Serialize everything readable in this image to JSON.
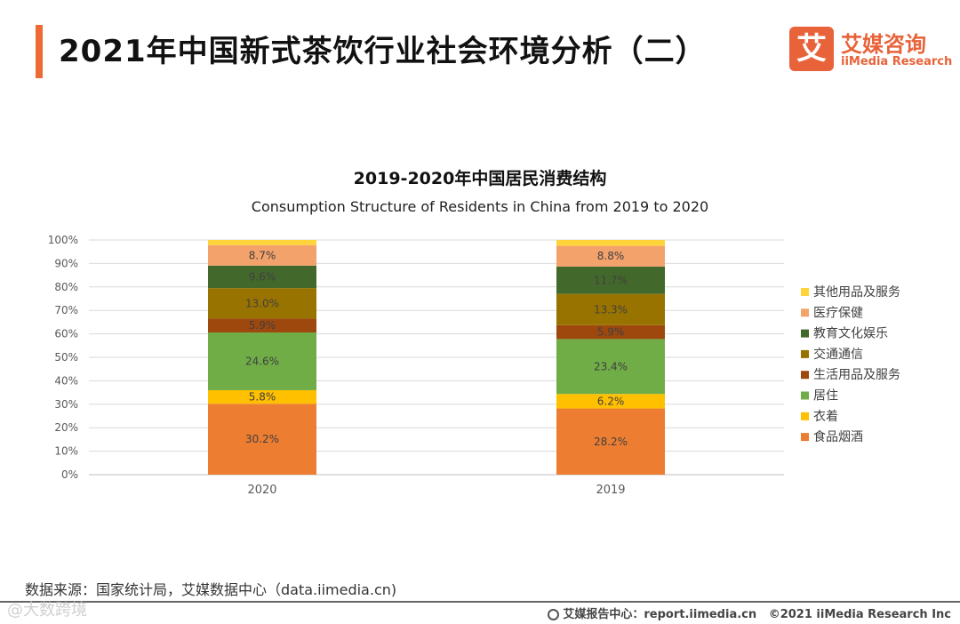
{
  "header": {
    "title": "2021年中国新式茶饮行业社会环境分析（二）",
    "logo_mark": "艾",
    "logo_cn": "艾媒咨询",
    "logo_en": "iiMedia Research"
  },
  "colors": {
    "accent": "#ee6a35",
    "food": "#ed7d31",
    "clothing": "#ffc000",
    "housing": "#70ad47",
    "daily": "#9e480e",
    "transport": "#997300",
    "education": "#43682b",
    "medical": "#f4a26b",
    "other": "#ffd43b"
  },
  "chart_data": {
    "type": "bar",
    "stacked": true,
    "percent": true,
    "title": "2019-2020年中国居民消费结构",
    "subtitle": "Consumption Structure of Residents in China from 2019 to 2020",
    "categories": [
      "2020",
      "2019"
    ],
    "y_ticks": [
      "0%",
      "10%",
      "20%",
      "30%",
      "40%",
      "50%",
      "60%",
      "70%",
      "80%",
      "90%",
      "100%"
    ],
    "ylim": [
      0,
      100
    ],
    "legend_position": "right",
    "series": [
      {
        "name": "食品烟酒",
        "color_key": "food",
        "values": [
          30.2,
          28.2
        ],
        "labels": [
          "30.2%",
          "28.2%"
        ]
      },
      {
        "name": "衣着",
        "color_key": "clothing",
        "values": [
          5.8,
          6.2
        ],
        "labels": [
          "5.8%",
          "6.2%"
        ]
      },
      {
        "name": "居住",
        "color_key": "housing",
        "values": [
          24.6,
          23.4
        ],
        "labels": [
          "24.6%",
          "23.4%"
        ]
      },
      {
        "name": "生活用品及服务",
        "color_key": "daily",
        "values": [
          5.9,
          5.9
        ],
        "labels": [
          "5.9%",
          "5.9%"
        ]
      },
      {
        "name": "交通通信",
        "color_key": "transport",
        "values": [
          13.0,
          13.3
        ],
        "labels": [
          "13.0%",
          "13.3%"
        ]
      },
      {
        "name": "教育文化娱乐",
        "color_key": "education",
        "values": [
          9.6,
          11.7
        ],
        "labels": [
          "9.6%",
          "11.7%"
        ]
      },
      {
        "name": "医疗保健",
        "color_key": "medical",
        "values": [
          8.7,
          8.8
        ],
        "labels": [
          "8.7%",
          "8.8%"
        ]
      },
      {
        "name": "其他用品及服务",
        "color_key": "other",
        "values": [
          2.2,
          2.5
        ],
        "labels": [
          "",
          ""
        ]
      }
    ]
  },
  "footer": {
    "source": "数据来源：国家统计局，艾媒数据中心（data.iimedia.cn)",
    "report": "艾媒报告中心：report.iimedia.cn",
    "copyright": "©2021  iiMedia Research  Inc",
    "watermark": "@大数跨境"
  }
}
